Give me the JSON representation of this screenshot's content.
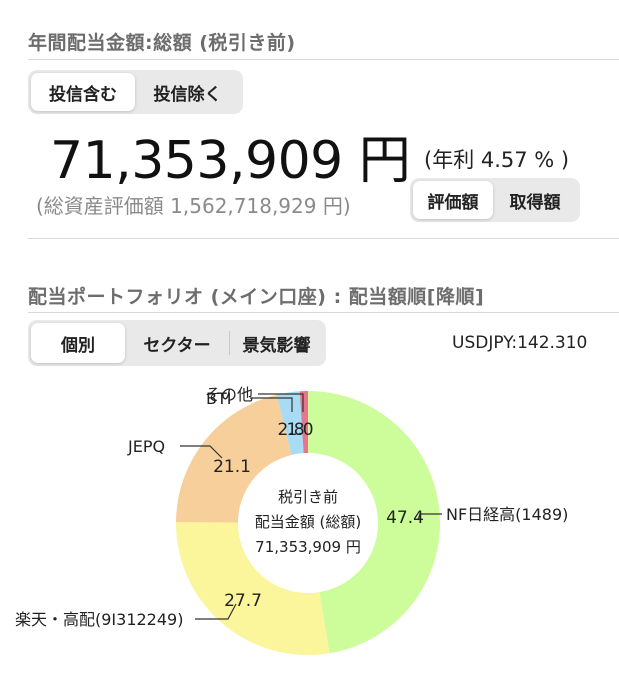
{
  "summary": {
    "title": "年間配当金額:総額 (税引き前)",
    "tabs": [
      {
        "label": "投信含む",
        "selected": true
      },
      {
        "label": "投信除く",
        "selected": false
      }
    ],
    "amount": "71,353,909 円",
    "annual_yield": "(年利 4.57 % )",
    "asset_valuation": "(総資産評価額 1,562,718,929 円)",
    "basis_tabs": [
      {
        "label": "評価額",
        "selected": true
      },
      {
        "label": "取得額",
        "selected": false
      }
    ]
  },
  "portfolio": {
    "title": "配当ポートフォリオ (メイン口座) : 配当額順[降順]",
    "tabs": [
      {
        "label": "個別",
        "selected": true
      },
      {
        "label": "セクター",
        "selected": false
      },
      {
        "label": "景気影響",
        "selected": false
      }
    ],
    "fx_rate": "USDJPY:142.310",
    "center_label": {
      "line1": "税引き前",
      "line2": "配当金額 (総額)",
      "line3": "71,353,909 円"
    }
  },
  "chart_data": {
    "type": "pie",
    "donut": true,
    "categories": [
      "NF日経高(1489)",
      "楽天・高配(9I312249)",
      "JEPQ",
      "BTI",
      "その他"
    ],
    "values": [
      47.4,
      27.7,
      21.1,
      2.8,
      1.0
    ],
    "value_labels": [
      "47.4",
      "27.7",
      "21.1",
      "2.8",
      "1.0"
    ],
    "colors": [
      "#cdfc9b",
      "#fbf59c",
      "#f6cf9b",
      "#a8dcf5",
      "#e7758d"
    ]
  }
}
